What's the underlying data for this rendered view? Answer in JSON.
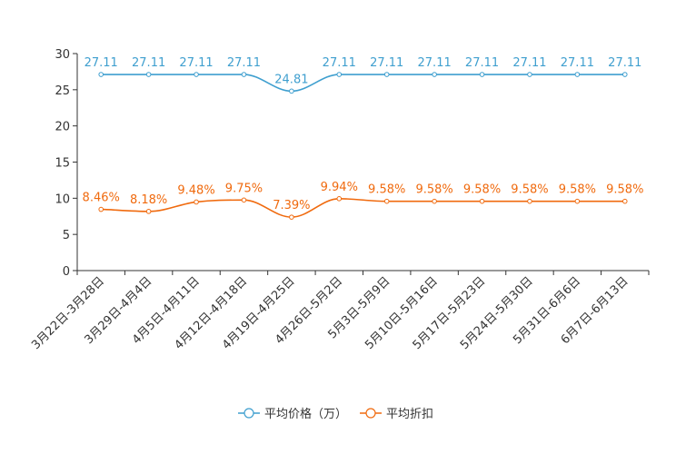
{
  "chart_data": {
    "type": "line",
    "title": "",
    "xlabel": "",
    "ylabel": "",
    "ylim": [
      0,
      30
    ],
    "yticks": [
      0,
      5,
      10,
      15,
      20,
      25,
      30
    ],
    "ytick_labels": [
      "0",
      "5",
      "10",
      "15",
      "20",
      "25",
      "30"
    ],
    "categories": [
      "3月22日-3月28日",
      "3月29日-4月4日",
      "4月5日-4月11日",
      "4月12日-4月18日",
      "4月19日-4月25日",
      "4月26日-5月2日",
      "5月3日-5月9日",
      "5月10日-5月16日",
      "5月17日-5月23日",
      "5月24日-5月30日",
      "5月31日-6月6日",
      "6月7日-6月13日"
    ],
    "series": [
      {
        "name": "平均价格（万）",
        "color": "#3f9fcf",
        "values": [
          27.11,
          27.11,
          27.11,
          27.11,
          24.81,
          27.11,
          27.11,
          27.11,
          27.11,
          27.11,
          27.11,
          27.11
        ],
        "labels": [
          "27.11",
          "27.11",
          "27.11",
          "27.11",
          "24.81",
          "27.11",
          "27.11",
          "27.11",
          "27.11",
          "27.11",
          "27.11",
          "27.11"
        ]
      },
      {
        "name": "平均折扣",
        "color": "#f06a0e",
        "values": [
          8.46,
          8.18,
          9.48,
          9.75,
          7.39,
          9.94,
          9.58,
          9.58,
          9.58,
          9.58,
          9.58,
          9.58
        ],
        "labels": [
          "8.46%",
          "8.18%",
          "9.48%",
          "9.75%",
          "7.39%",
          "9.94%",
          "9.58%",
          "9.58%",
          "9.58%",
          "9.58%",
          "9.58%",
          "9.58%"
        ]
      }
    ],
    "legend": {
      "position": "bottom-center"
    },
    "grid": false,
    "axis_color": "#333333"
  }
}
